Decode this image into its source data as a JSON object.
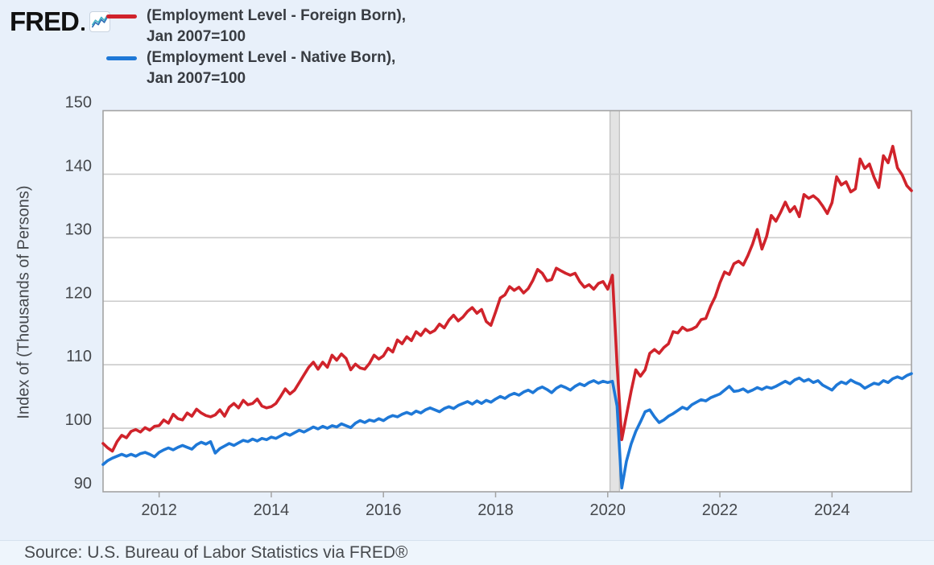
{
  "header": {
    "logo_text": "FRED",
    "logo_icon": "line-chart-icon",
    "legend": [
      {
        "series": "foreign-born",
        "color": "#d0232b",
        "line1": "(Employment Level - Foreign Born),",
        "line2": "Jan 2007=100"
      },
      {
        "series": "native-born",
        "color": "#1e78d7",
        "line1": "(Employment Level - Native Born),",
        "line2": "Jan 2007=100"
      }
    ]
  },
  "source_bar": {
    "text": "Source: U.S. Bureau of Labor Statistics via FRED®"
  },
  "colors": {
    "page_background": "#e8f0fa",
    "plot_background": "#ffffff",
    "grid": "#cbcbcb",
    "axis_border": "#a3a3a3",
    "tick_text": "#45484c",
    "recession_band": "#e3e3e3",
    "recession_border": "#b3b3b3",
    "foreign_born_line": "#d0232b",
    "native_born_line": "#1e78d7"
  },
  "chart_data": {
    "type": "line",
    "frequency": "monthly",
    "x_start": "2011-01",
    "x_end": "2025-06",
    "ylabel": "Index of (Thousands of Persons)",
    "ylim": [
      90,
      150
    ],
    "yticks": [
      90,
      100,
      110,
      120,
      130,
      140,
      150
    ],
    "xticks": [
      2012,
      2014,
      2016,
      2018,
      2020,
      2022,
      2024
    ],
    "grid": "horizontal",
    "legend_position": "top-left",
    "recession_shading": {
      "start": "2020-02",
      "end": "2020-04"
    },
    "series": [
      {
        "name": "(Employment Level - Foreign Born), Jan 2007=100",
        "color": "#d0232b",
        "values": [
          97.6,
          96.9,
          96.4,
          97.9,
          98.9,
          98.5,
          99.5,
          99.8,
          99.4,
          100.1,
          99.7,
          100.3,
          100.4,
          101.3,
          100.8,
          102.2,
          101.5,
          101.3,
          102.4,
          101.9,
          103.0,
          102.4,
          102.0,
          101.8,
          102.1,
          102.9,
          101.9,
          103.3,
          103.9,
          103.2,
          104.4,
          103.7,
          103.9,
          104.6,
          103.5,
          103.2,
          103.4,
          103.9,
          105.0,
          106.2,
          105.4,
          106.0,
          107.2,
          108.4,
          109.6,
          110.4,
          109.3,
          110.4,
          109.6,
          111.5,
          110.7,
          111.7,
          111.0,
          109.2,
          110.1,
          109.5,
          109.3,
          110.2,
          111.5,
          110.9,
          111.4,
          112.6,
          112.0,
          113.9,
          113.3,
          114.4,
          113.8,
          115.2,
          114.6,
          115.6,
          115.0,
          115.4,
          116.4,
          115.8,
          117.0,
          117.8,
          116.9,
          117.5,
          118.4,
          119.0,
          118.1,
          118.7,
          116.8,
          116.2,
          118.3,
          120.5,
          121.0,
          122.3,
          121.7,
          122.2,
          121.3,
          122.0,
          123.3,
          125.0,
          124.4,
          123.2,
          123.4,
          125.2,
          124.8,
          124.4,
          124.1,
          124.4,
          123.1,
          122.2,
          122.6,
          121.9,
          122.8,
          123.1,
          121.9,
          124.1,
          110.0,
          98.2,
          102.0,
          105.8,
          109.2,
          108.2,
          109.2,
          111.8,
          112.4,
          111.8,
          112.7,
          113.3,
          115.2,
          115.0,
          115.9,
          115.4,
          115.6,
          116.0,
          117.1,
          117.3,
          119.2,
          120.7,
          122.9,
          124.6,
          124.2,
          125.9,
          126.3,
          125.7,
          127.2,
          129.0,
          131.3,
          128.2,
          130.2,
          133.5,
          132.6,
          134.0,
          135.6,
          134.1,
          134.9,
          133.3,
          136.8,
          136.2,
          136.6,
          136.0,
          135.0,
          133.8,
          135.5,
          139.6,
          138.3,
          138.8,
          137.2,
          137.7,
          142.4,
          140.9,
          141.6,
          139.5,
          137.9,
          142.9,
          141.8,
          144.4,
          141.0,
          139.9,
          138.2,
          137.4
        ]
      },
      {
        "name": "(Employment Level - Native Born), Jan 2007=100",
        "color": "#1e78d7",
        "values": [
          94.3,
          94.9,
          95.3,
          95.6,
          95.9,
          95.6,
          95.9,
          95.6,
          96.0,
          96.2,
          95.9,
          95.5,
          96.2,
          96.6,
          96.9,
          96.6,
          97.0,
          97.3,
          97.0,
          96.7,
          97.4,
          97.8,
          97.5,
          97.9,
          96.1,
          96.8,
          97.2,
          97.6,
          97.3,
          97.7,
          98.1,
          97.9,
          98.3,
          98.0,
          98.4,
          98.2,
          98.6,
          98.4,
          98.8,
          99.2,
          98.9,
          99.3,
          99.7,
          99.4,
          99.8,
          100.2,
          99.9,
          100.3,
          100.0,
          100.4,
          100.2,
          100.7,
          100.4,
          100.1,
          100.8,
          101.2,
          100.9,
          101.3,
          101.1,
          101.5,
          101.2,
          101.7,
          102.0,
          101.8,
          102.2,
          102.5,
          102.2,
          102.7,
          102.4,
          102.9,
          103.2,
          102.9,
          102.6,
          103.1,
          103.4,
          103.1,
          103.6,
          103.9,
          104.2,
          103.8,
          104.3,
          103.9,
          104.4,
          104.1,
          104.6,
          105.0,
          104.7,
          105.2,
          105.5,
          105.2,
          105.7,
          106.0,
          105.6,
          106.2,
          106.5,
          106.1,
          105.6,
          106.3,
          106.7,
          106.4,
          106.0,
          106.6,
          107.0,
          106.7,
          107.2,
          107.5,
          107.1,
          107.4,
          107.2,
          107.4,
          103.5,
          90.6,
          94.8,
          97.5,
          99.5,
          101.0,
          102.6,
          102.9,
          101.8,
          100.9,
          101.3,
          101.9,
          102.3,
          102.8,
          103.3,
          103.0,
          103.7,
          104.1,
          104.5,
          104.3,
          104.8,
          105.1,
          105.4,
          106.0,
          106.6,
          105.8,
          105.9,
          106.2,
          105.7,
          106.0,
          106.4,
          106.1,
          106.5,
          106.3,
          106.6,
          107.0,
          107.4,
          107.0,
          107.6,
          107.9,
          107.4,
          107.7,
          107.2,
          107.5,
          106.8,
          106.4,
          106.0,
          106.8,
          107.3,
          107.0,
          107.6,
          107.2,
          106.9,
          106.3,
          106.7,
          107.1,
          106.9,
          107.5,
          107.2,
          107.8,
          108.1,
          107.8,
          108.3,
          108.6
        ]
      }
    ]
  }
}
